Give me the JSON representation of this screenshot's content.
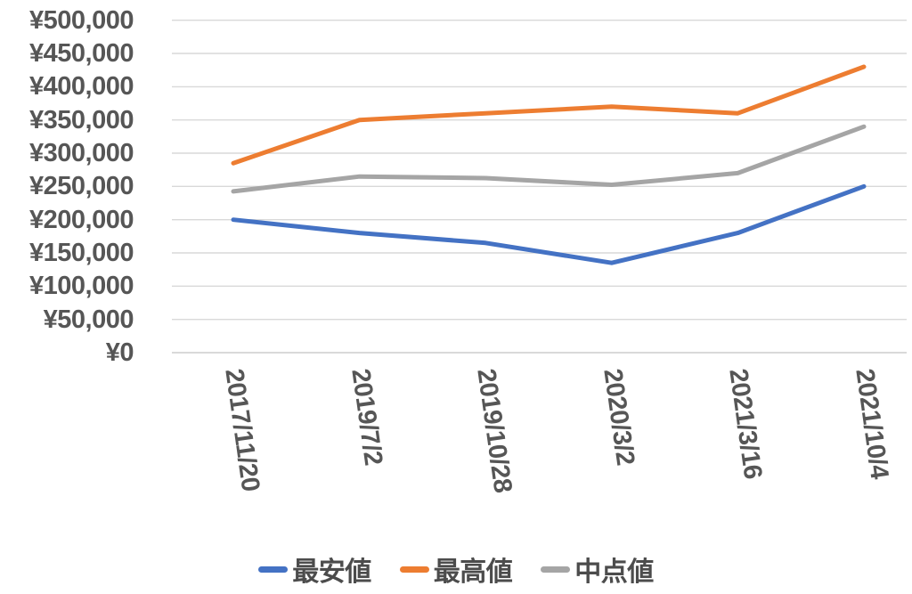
{
  "chart_data": {
    "type": "line",
    "title": "",
    "categories": [
      "2017/11/20",
      "2019/7/2",
      "2019/10/28",
      "2020/3/2",
      "2021/3/16",
      "2021/10/4"
    ],
    "series": [
      {
        "name": "最安値",
        "color": "#4472C4",
        "values": [
          200000,
          180000,
          165000,
          135000,
          180000,
          250000
        ]
      },
      {
        "name": "最高値",
        "color": "#ED7D31",
        "values": [
          285000,
          350000,
          360000,
          370000,
          360000,
          430000
        ]
      },
      {
        "name": "中点値",
        "color": "#A5A5A5",
        "values": [
          242500,
          265000,
          262500,
          252500,
          270000,
          340000
        ]
      }
    ],
    "xlabel": "",
    "ylabel": "",
    "y_axis": {
      "min": 0,
      "max": 500000,
      "step": 50000,
      "tick_prefix": "¥",
      "tick_labels": [
        "¥500,000",
        "¥450,000",
        "¥400,000",
        "¥350,000",
        "¥300,000",
        "¥250,000",
        "¥200,000",
        "¥150,000",
        "¥100,000",
        "¥50,000",
        "¥0"
      ]
    },
    "grid": true,
    "legend_position": "bottom",
    "colors": {
      "gridline": "#D9D9D9",
      "axis_text": "#565656",
      "legend_text": "#4c4c4c"
    }
  }
}
